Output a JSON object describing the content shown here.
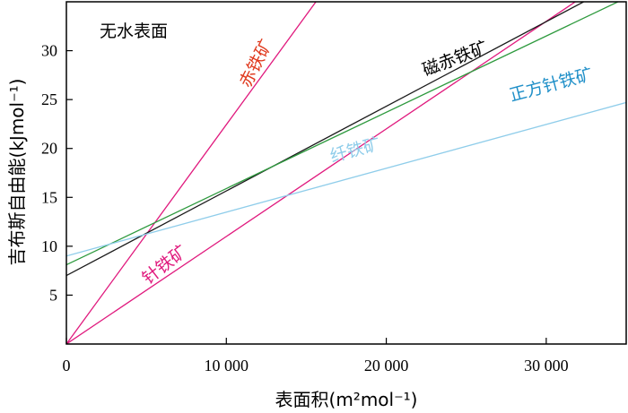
{
  "chart_data": {
    "type": "line",
    "panel_label": "无水表面",
    "xlabel": "表面积(m²mol⁻¹)",
    "ylabel": "吉布斯自由能(kJmol⁻¹)",
    "xlim": [
      0,
      35000
    ],
    "ylim": [
      0,
      35
    ],
    "x_ticks": [
      0,
      10000,
      20000,
      30000
    ],
    "x_tick_labels": [
      "0",
      "10 000",
      "20 000",
      "30 000"
    ],
    "y_ticks": [
      5,
      10,
      15,
      20,
      25,
      30
    ],
    "y_tick_labels": [
      "5",
      "10",
      "15",
      "20",
      "25",
      "30"
    ],
    "series": [
      {
        "name": "赤铁矿",
        "color": "#e0197d",
        "x": [
          0,
          15600
        ],
        "y": [
          0,
          35
        ]
      },
      {
        "name": "针铁矿",
        "color": "#e0197d",
        "x": [
          0,
          35000
        ],
        "y": [
          0,
          38.5
        ]
      },
      {
        "name": "磁赤铁矿",
        "color": "#1a1a1a",
        "x": [
          0,
          35000
        ],
        "y": [
          7,
          37.3
        ]
      },
      {
        "name": "正方针铁矿",
        "color": "#2e9a3e",
        "x": [
          0,
          35000
        ],
        "y": [
          8.1,
          35.4
        ]
      },
      {
        "name": "纤铁矿",
        "color": "#8fcdea",
        "x": [
          0,
          35000
        ],
        "y": [
          9,
          24.7
        ]
      }
    ],
    "annotations": [
      {
        "text": "赤铁矿",
        "color": "#e03a1e"
      },
      {
        "text": "磁赤铁矿",
        "color": "#000000"
      },
      {
        "text": "正方针铁矿",
        "color": "#1f8fc8"
      },
      {
        "text": "纤铁矿",
        "color": "#8fcdea"
      },
      {
        "text": "针铁矿",
        "color": "#e0197d"
      }
    ]
  }
}
